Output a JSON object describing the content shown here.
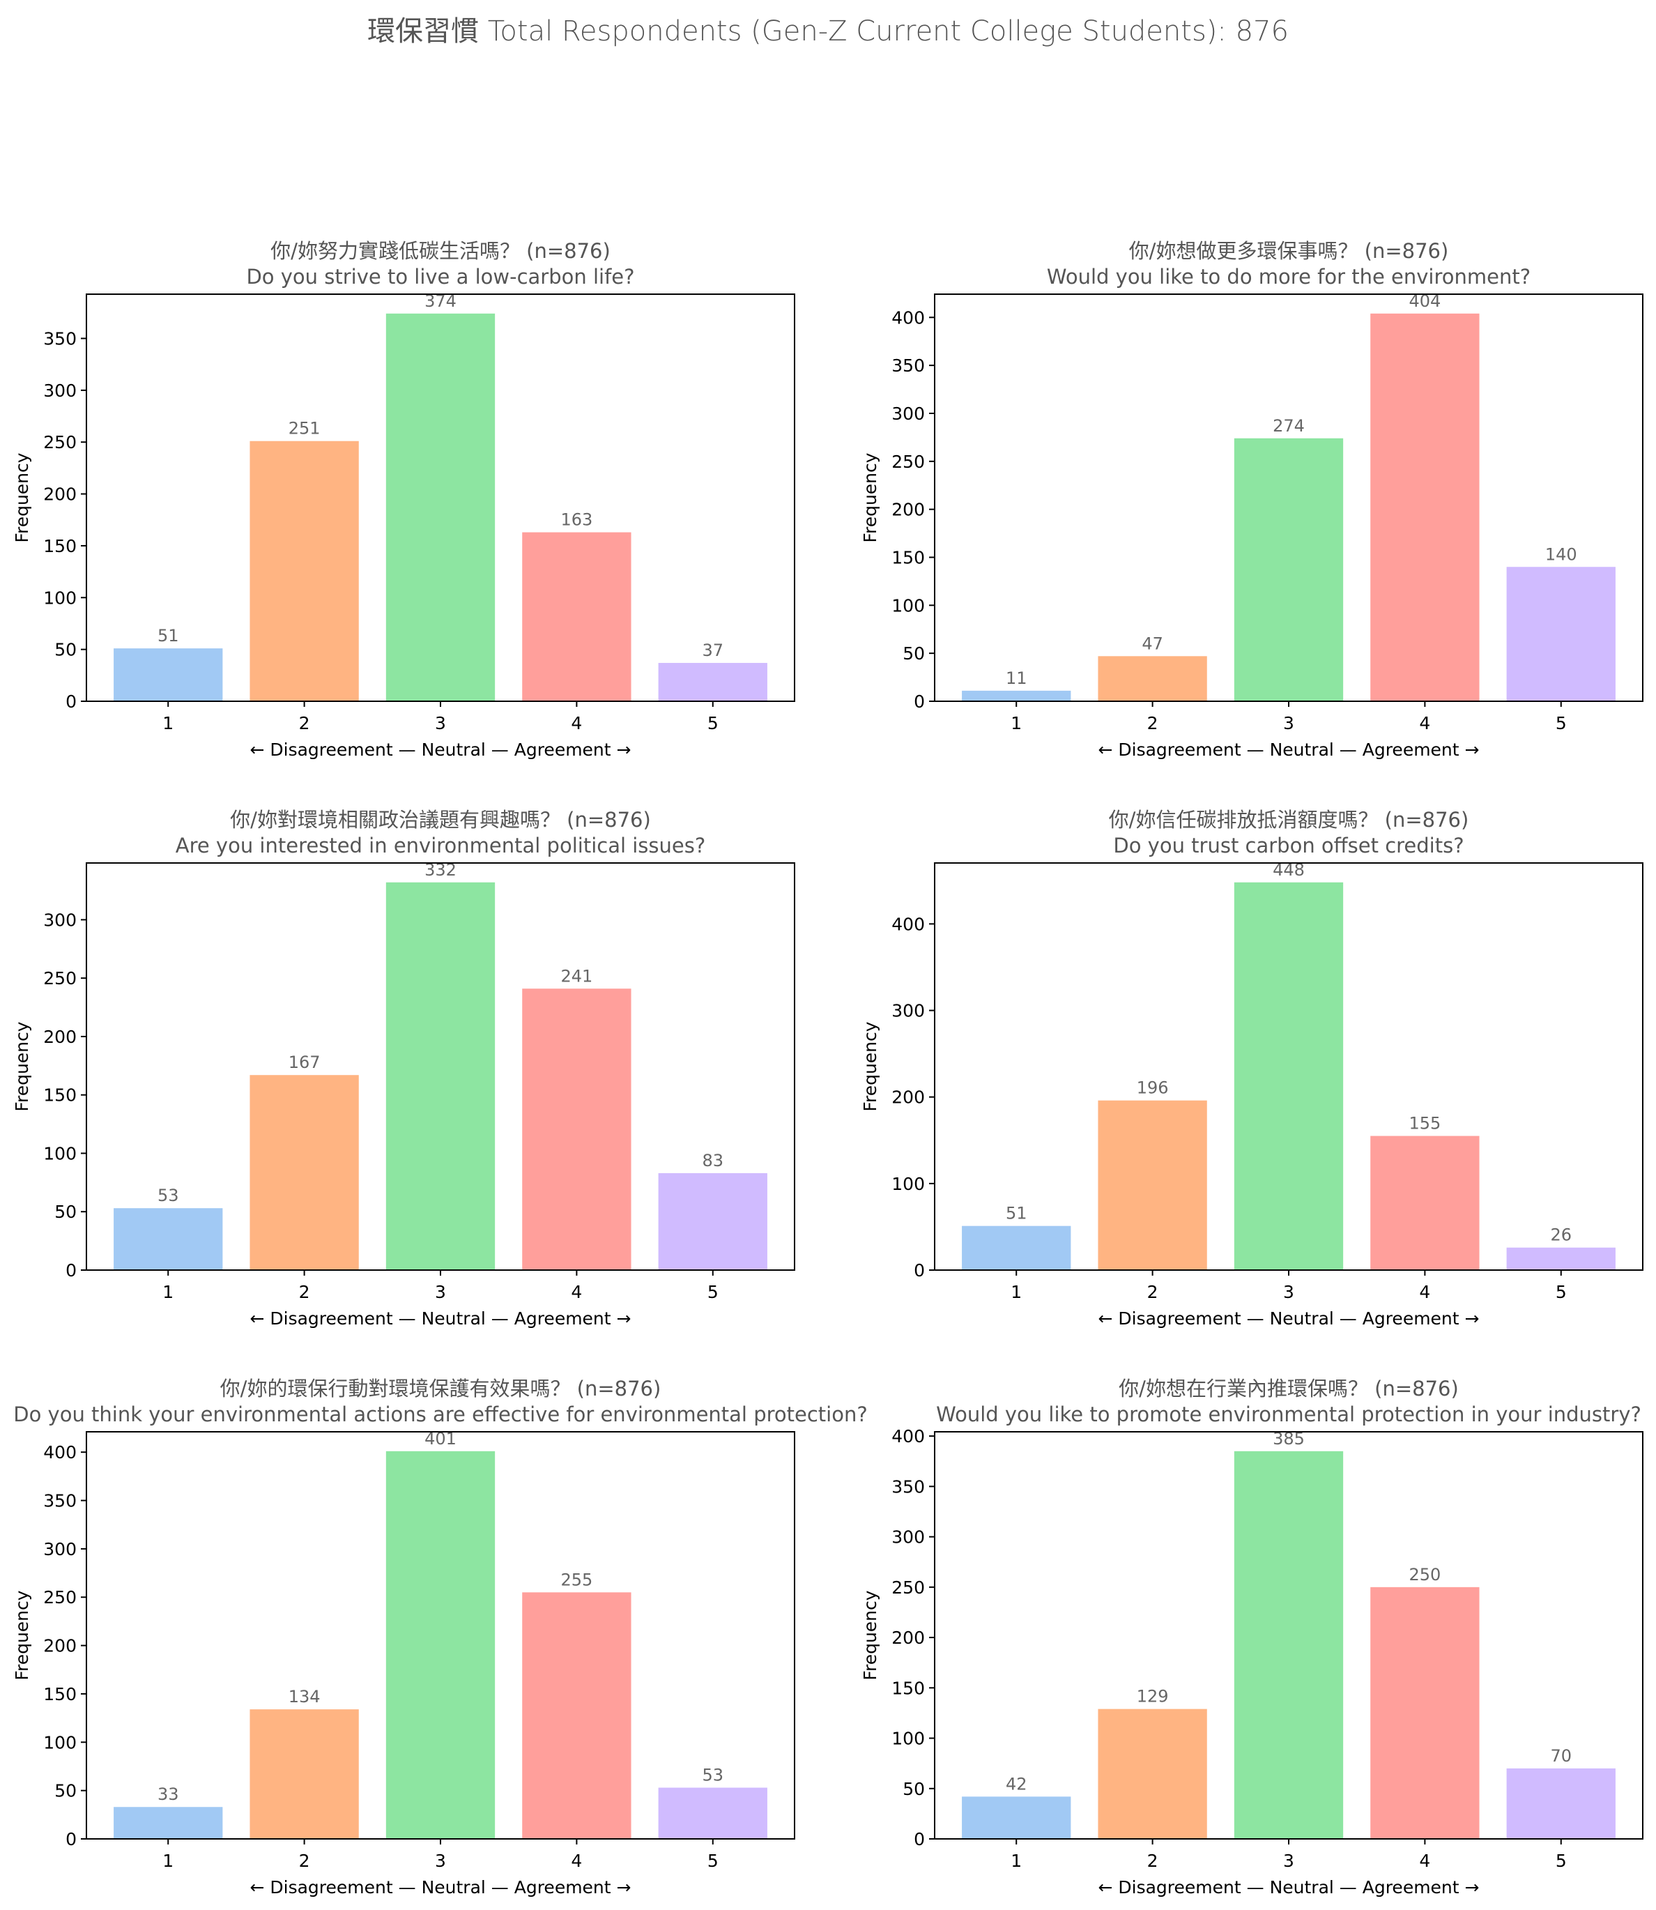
{
  "figure": {
    "suptitle": "環保習慣  Total Respondents (Gen-Z Current College Students): 876",
    "colors": [
      "#a1c9f4",
      "#ffb482",
      "#8de5a1",
      "#ff9f9b",
      "#d0bbff"
    ]
  },
  "chart_data": [
    {
      "type": "bar",
      "title_zh": "你/妳努力實踐低碳生活嗎？ (n=876)",
      "title_en": "Do you strive to live a low-carbon life?",
      "xlabel": "← Disagreement — Neutral — Agreement →",
      "ylabel": "Frequency",
      "categories": [
        "1",
        "2",
        "3",
        "4",
        "5"
      ],
      "values": [
        51,
        251,
        374,
        163,
        37
      ],
      "ylim": [
        0,
        392.7
      ],
      "yticks": [
        0,
        50,
        100,
        150,
        200,
        250,
        300,
        350
      ]
    },
    {
      "type": "bar",
      "title_zh": "你/妳想做更多環保事嗎？ (n=876)",
      "title_en": "Would you like to do more for the environment?",
      "xlabel": "← Disagreement — Neutral — Agreement →",
      "ylabel": "Frequency",
      "categories": [
        "1",
        "2",
        "3",
        "4",
        "5"
      ],
      "values": [
        11,
        47,
        274,
        404,
        140
      ],
      "ylim": [
        0,
        424.2
      ],
      "yticks": [
        0,
        50,
        100,
        150,
        200,
        250,
        300,
        350,
        400
      ]
    },
    {
      "type": "bar",
      "title_zh": "你/妳對環境相關政治議題有興趣嗎？ (n=876)",
      "title_en": "Are you interested in environmental political issues?",
      "xlabel": "← Disagreement — Neutral — Agreement →",
      "ylabel": "Frequency",
      "categories": [
        "1",
        "2",
        "3",
        "4",
        "5"
      ],
      "values": [
        53,
        167,
        332,
        241,
        83
      ],
      "ylim": [
        0,
        348.6
      ],
      "yticks": [
        0,
        50,
        100,
        150,
        200,
        250,
        300
      ]
    },
    {
      "type": "bar",
      "title_zh": "你/妳信任碳排放抵消額度嗎？ (n=876)",
      "title_en": "Do you trust carbon offset credits?",
      "xlabel": "← Disagreement — Neutral — Agreement →",
      "ylabel": "Frequency",
      "categories": [
        "1",
        "2",
        "3",
        "4",
        "5"
      ],
      "values": [
        51,
        196,
        448,
        155,
        26
      ],
      "ylim": [
        0,
        470.4
      ],
      "yticks": [
        0,
        100,
        200,
        300,
        400
      ]
    },
    {
      "type": "bar",
      "title_zh": "你/妳的環保行動對環境保護有效果嗎？ (n=876)",
      "title_en": "Do you think your environmental actions are effective for environmental protection?",
      "xlabel": "← Disagreement — Neutral — Agreement →",
      "ylabel": "Frequency",
      "categories": [
        "1",
        "2",
        "3",
        "4",
        "5"
      ],
      "values": [
        33,
        134,
        401,
        255,
        53
      ],
      "ylim": [
        0,
        421.05
      ],
      "yticks": [
        0,
        50,
        100,
        150,
        200,
        250,
        300,
        350,
        400
      ]
    },
    {
      "type": "bar",
      "title_zh": "你/妳想在行業內推環保嗎？ (n=876)",
      "title_en": "Would you like to promote environmental protection in your industry?",
      "xlabel": "← Disagreement — Neutral — Agreement →",
      "ylabel": "Frequency",
      "categories": [
        "1",
        "2",
        "3",
        "4",
        "5"
      ],
      "values": [
        42,
        129,
        385,
        250,
        70
      ],
      "ylim": [
        0,
        404.25
      ],
      "yticks": [
        0,
        50,
        100,
        150,
        200,
        250,
        300,
        350,
        400
      ]
    }
  ]
}
